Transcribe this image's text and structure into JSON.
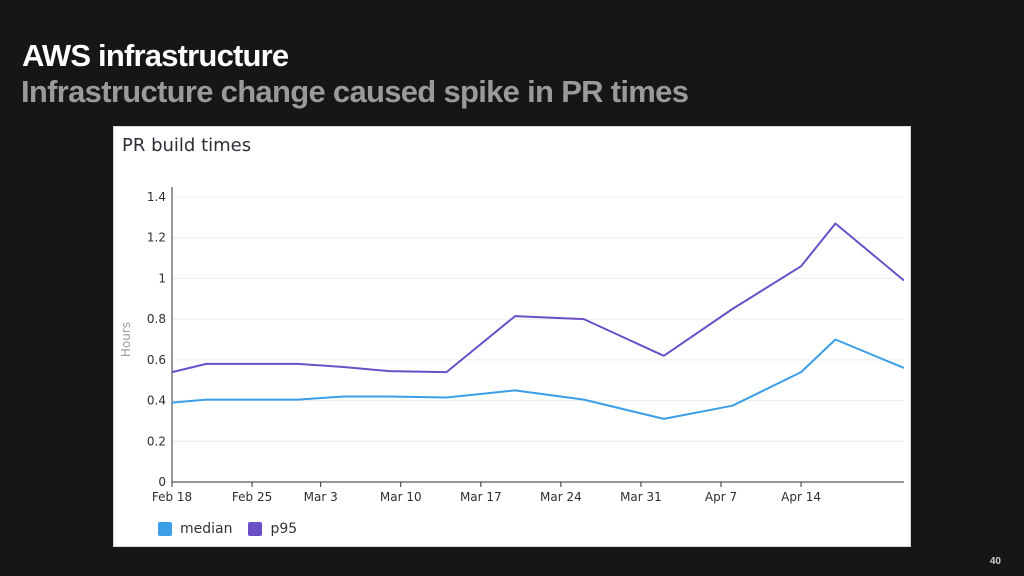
{
  "slide": {
    "title": "AWS infrastructure",
    "subtitle": "Infrastructure change caused spike in PR times",
    "page_number": "40"
  },
  "chart_data": {
    "type": "line",
    "title": "PR build times",
    "xlabel": "",
    "ylabel": "Hours",
    "x_ticks": [
      "Feb 18",
      "Feb 25",
      "Mar 3",
      "Mar 10",
      "Mar 17",
      "Mar 24",
      "Mar 31",
      "Apr 7",
      "Apr 14"
    ],
    "x_tick_dates": [
      "2021-02-18",
      "2021-02-25",
      "2021-03-03",
      "2021-03-10",
      "2021-03-17",
      "2021-03-24",
      "2021-03-31",
      "2021-04-07",
      "2021-04-14"
    ],
    "xlim": [
      "2021-02-18",
      "2021-04-23"
    ],
    "ylim": [
      0,
      1.4
    ],
    "y_ticks": [
      0,
      0.2,
      0.4,
      0.6,
      0.8,
      1,
      1.2,
      1.4
    ],
    "y_tick_labels": [
      "0",
      "0.2",
      "0.4",
      "0.6",
      "0.8",
      "1",
      "1.2",
      "1.4"
    ],
    "grid": true,
    "legend_position": "bottom-left",
    "series": [
      {
        "name": "median",
        "color": "#3b9ee6",
        "points": [
          [
            "2021-02-18",
            0.39
          ],
          [
            "2021-02-21",
            0.405
          ],
          [
            "2021-02-25",
            0.405
          ],
          [
            "2021-03-01",
            0.405
          ],
          [
            "2021-03-05",
            0.42
          ],
          [
            "2021-03-09",
            0.42
          ],
          [
            "2021-03-14",
            0.415
          ],
          [
            "2021-03-20",
            0.45
          ],
          [
            "2021-03-26",
            0.405
          ],
          [
            "2021-04-02",
            0.31
          ],
          [
            "2021-04-08",
            0.375
          ],
          [
            "2021-04-14",
            0.54
          ],
          [
            "2021-04-17",
            0.7
          ],
          [
            "2021-04-23",
            0.56
          ]
        ]
      },
      {
        "name": "p95",
        "color": "#6a4fc9",
        "points": [
          [
            "2021-02-18",
            0.54
          ],
          [
            "2021-02-21",
            0.58
          ],
          [
            "2021-02-25",
            0.58
          ],
          [
            "2021-03-01",
            0.58
          ],
          [
            "2021-03-05",
            0.565
          ],
          [
            "2021-03-09",
            0.545
          ],
          [
            "2021-03-14",
            0.54
          ],
          [
            "2021-03-20",
            0.815
          ],
          [
            "2021-03-26",
            0.8
          ],
          [
            "2021-04-02",
            0.62
          ],
          [
            "2021-04-08",
            0.85
          ],
          [
            "2021-04-14",
            1.06
          ],
          [
            "2021-04-17",
            1.27
          ],
          [
            "2021-04-23",
            0.99
          ]
        ]
      }
    ]
  }
}
